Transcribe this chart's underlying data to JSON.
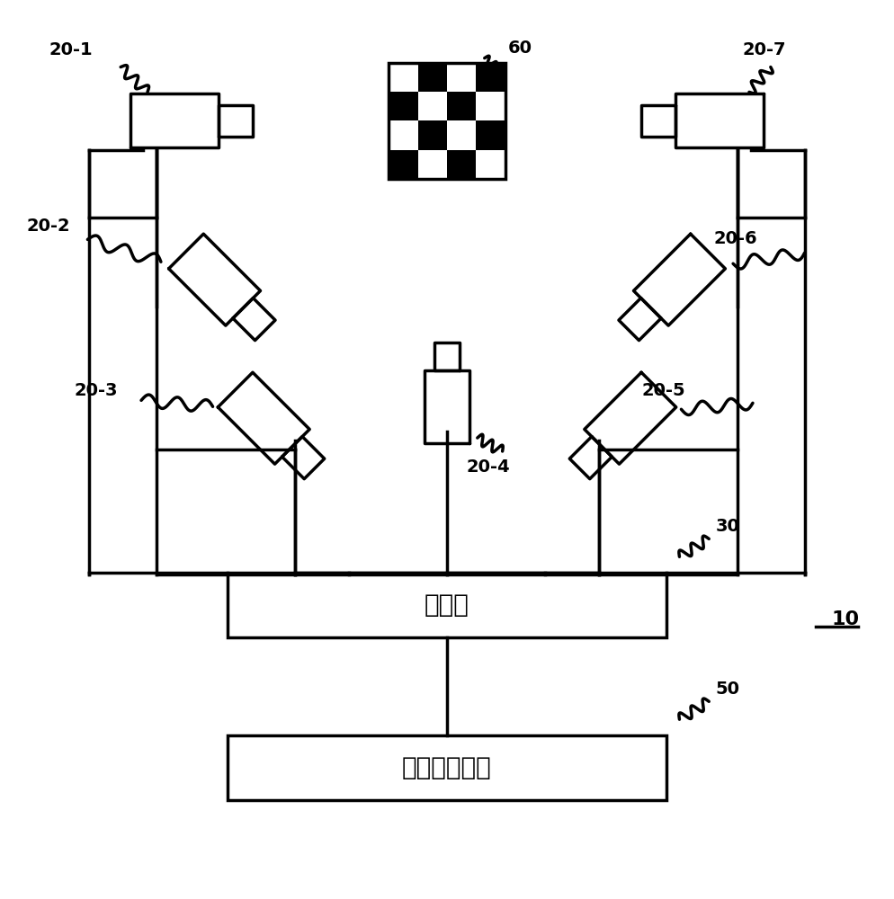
{
  "bg_color": "#ffffff",
  "line_color": "#000000",
  "line_width": 2.5,
  "relay_text": "中继器",
  "info_text": "信息处理装置"
}
